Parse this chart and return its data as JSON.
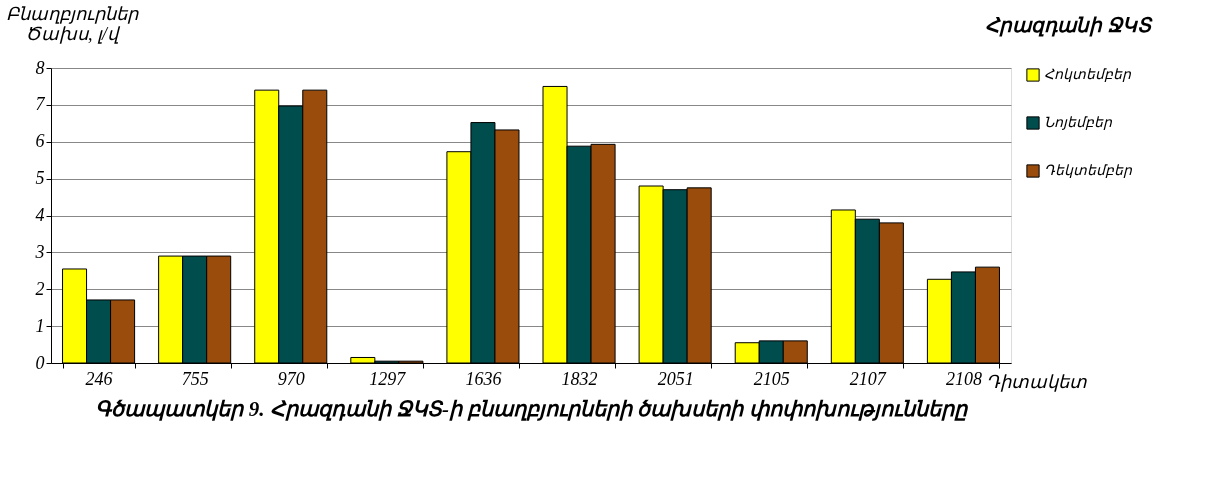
{
  "chart_data": {
    "type": "bar",
    "title": "Գծապատկեր 9. Հրազդանի ՋԿՏ-ի բնաղբյուրների ծախսերի փոփոխությունները",
    "xlabel": "Դիտակետ",
    "ylabel": "Բնաղբյուրներ\nԾախս, լ/վ",
    "annotations": [
      "Հրազդանի ՋԿՏ"
    ],
    "categories": [
      "246",
      "755",
      "970",
      "1297",
      "1636",
      "1832",
      "2051",
      "2105",
      "2107",
      "2108"
    ],
    "series": [
      {
        "name": "Հոկտեմբեր",
        "color": "#ffff00",
        "values": [
          2.55,
          2.9,
          7.4,
          0.15,
          5.73,
          7.5,
          4.8,
          0.55,
          4.15,
          2.27
        ]
      },
      {
        "name": "Նոյեմբեր",
        "color": "#004d4d",
        "values": [
          1.71,
          2.9,
          6.97,
          0.05,
          6.52,
          5.88,
          4.7,
          0.6,
          3.9,
          2.47
        ]
      },
      {
        "name": "Դեկտեմբեր",
        "color": "#994c0c",
        "values": [
          1.71,
          2.9,
          7.4,
          0.05,
          6.32,
          5.93,
          4.75,
          0.6,
          3.8,
          2.6
        ]
      }
    ],
    "ylim": [
      0,
      8
    ],
    "yticks": [
      0,
      1,
      2,
      3,
      4,
      5,
      6,
      7,
      8
    ],
    "grid": "y",
    "legend": "right"
  }
}
